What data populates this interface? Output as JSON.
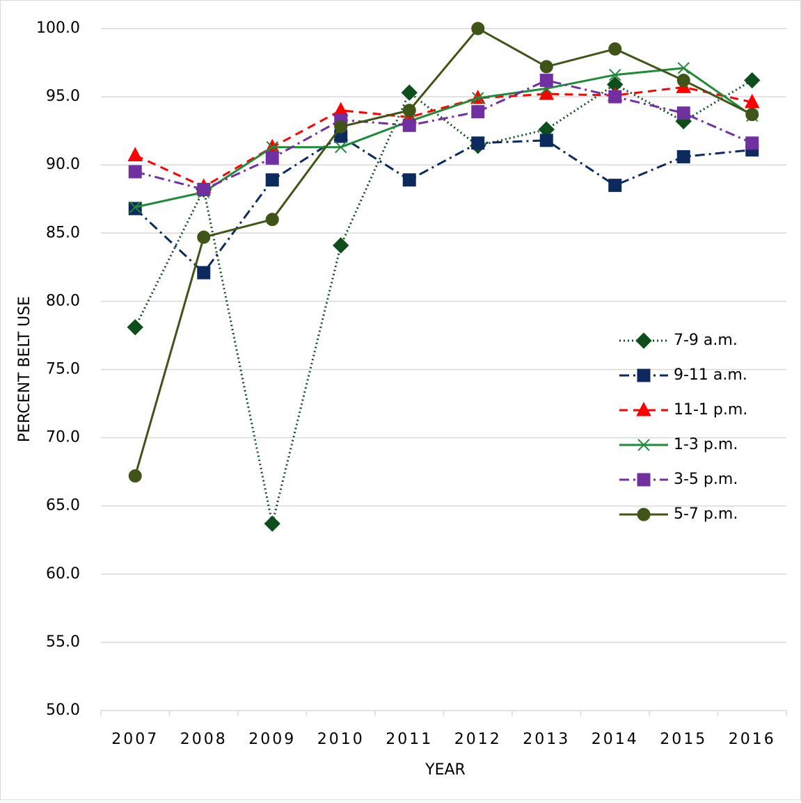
{
  "chart_data": {
    "type": "line",
    "x_label": "YEAR",
    "y_label": "PERCENT BELT USE",
    "categories": [
      "2007",
      "2008",
      "2009",
      "2010",
      "2011",
      "2012",
      "2013",
      "2014",
      "2015",
      "2016"
    ],
    "series": [
      {
        "name": "7-9 a.m.",
        "color": "#0e4d1c",
        "dash": "dotted",
        "marker": "diamond",
        "values": [
          78.1,
          88.2,
          63.7,
          84.1,
          95.3,
          91.4,
          92.6,
          95.9,
          93.2,
          96.2
        ]
      },
      {
        "name": "9-11 a.m.",
        "color": "#0c2a5e",
        "dash": "dashdot",
        "marker": "square",
        "values": [
          86.8,
          82.1,
          88.9,
          92.1,
          88.9,
          91.6,
          91.8,
          88.5,
          90.6,
          91.1
        ]
      },
      {
        "name": "11-1 p.m.",
        "color": "#ff0000",
        "dash": "dashed",
        "marker": "triangle",
        "values": [
          90.7,
          88.4,
          91.3,
          94.0,
          93.5,
          94.9,
          95.2,
          95.1,
          95.7,
          94.6
        ]
      },
      {
        "name": "1-3 p.m.",
        "color": "#1f8a3a",
        "dash": "solid",
        "marker": "x",
        "values": [
          86.9,
          88.0,
          91.3,
          91.3,
          93.2,
          94.9,
          95.6,
          96.6,
          97.1,
          93.6
        ]
      },
      {
        "name": "3-5 p.m.",
        "color": "#7030a0",
        "dash": "dashdot",
        "marker": "square",
        "values": [
          89.5,
          88.2,
          90.5,
          93.3,
          92.9,
          93.9,
          96.2,
          95.0,
          93.8,
          91.6
        ]
      },
      {
        "name": "5-7 p.m.",
        "color": "#3f5417",
        "dash": "solid",
        "marker": "circle",
        "values": [
          67.2,
          84.7,
          86.0,
          92.8,
          94.0,
          100.0,
          97.2,
          98.5,
          96.2,
          93.7
        ]
      }
    ],
    "ylim": [
      50,
      100
    ],
    "yticks": [
      {
        "value": 50,
        "label": "50.0"
      },
      {
        "value": 55,
        "label": "55.0"
      },
      {
        "value": 60,
        "label": "60.0"
      },
      {
        "value": 65,
        "label": "65.0"
      },
      {
        "value": 70,
        "label": "70.0"
      },
      {
        "value": 75,
        "label": "75.0"
      },
      {
        "value": 80,
        "label": "80.0"
      },
      {
        "value": 85,
        "label": "85.0"
      },
      {
        "value": 90,
        "label": "90.0"
      },
      {
        "value": 95,
        "label": "95.0"
      },
      {
        "value": 100,
        "label": "100.0"
      }
    ],
    "grid": true
  }
}
